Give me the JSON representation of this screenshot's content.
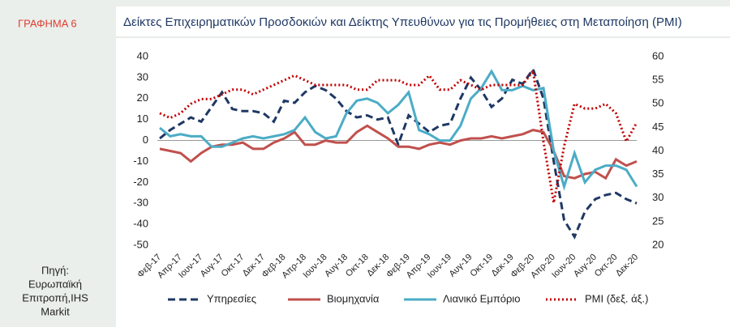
{
  "chart_data": {
    "type": "line",
    "label": "ΓΡΑΦΗΜΑ 6",
    "title": "Δείκτες Επιχειρηματικών Προσδοκιών και Δείκτης Υπευθύνων για τις Προμήθειες στη Μεταποίηση (PMI)",
    "source": [
      "Πηγή:",
      "Ευρωπαϊκή",
      "Επιτροπή,IHS",
      "Markit"
    ],
    "categories": [
      "Φεβ-17",
      null,
      "Απρ-17",
      null,
      "Ιουν-17",
      null,
      "Αυγ-17",
      null,
      "Οκτ-17",
      null,
      "Δεκ-17",
      null,
      "Φεβ-18",
      null,
      "Απρ-18",
      null,
      "Ιουν-18",
      null,
      "Αυγ-18",
      null,
      "Οκτ-18",
      null,
      "Δεκ-18",
      null,
      "Φεβ-19",
      null,
      "Απρ-19",
      null,
      "Ιουν-19",
      null,
      "Αυγ-19",
      null,
      "Οκτ-19",
      null,
      "Δεκ-19",
      null,
      "Φεβ-20",
      null,
      "Απρ-20",
      null,
      "Ιουν-20",
      null,
      "Αυγ-20",
      null,
      "Οκτ-20",
      null,
      "Δεκ-20"
    ],
    "series": [
      {
        "name": "Υπηρεσίες",
        "color": "#1f3864",
        "dash": "dashed",
        "values": [
          1,
          5,
          8,
          11,
          9,
          16,
          23,
          15,
          14,
          14,
          13,
          9,
          19,
          18,
          23,
          26,
          24,
          20,
          14,
          11,
          12,
          10,
          11,
          -2,
          12,
          8,
          4,
          7,
          8,
          20,
          30,
          24,
          16,
          20,
          29,
          27,
          34,
          20,
          -10,
          -38,
          -46,
          -34,
          -28,
          -26,
          -25,
          -28,
          -30
        ]
      },
      {
        "name": "Βιομηχανία",
        "color": "#c0504d",
        "dash": "solid",
        "values": [
          -4,
          -5,
          -6,
          -10,
          -6,
          -3,
          -2,
          -2,
          -1,
          -4,
          -4,
          -1,
          1,
          4,
          -2,
          -2,
          0,
          -1,
          -1,
          4,
          7,
          4,
          1,
          -3,
          -3,
          -4,
          -2,
          -1,
          -2,
          0,
          1,
          1,
          2,
          1,
          2,
          3,
          5,
          4,
          -5,
          -17,
          -18,
          -16,
          -15,
          -18,
          -9,
          -12,
          -10
        ]
      },
      {
        "name": "Λιανικό Εμπόριο",
        "color": "#4bacc6",
        "dash": "solid",
        "values": [
          6,
          2,
          3,
          2,
          2,
          -3,
          -3,
          -1,
          1,
          2,
          1,
          2,
          3,
          5,
          11,
          4,
          1,
          2,
          13,
          19,
          20,
          18,
          13,
          17,
          23,
          5,
          3,
          0,
          0,
          7,
          20,
          25,
          33,
          24,
          24,
          26,
          24,
          25,
          -5,
          -22,
          -6,
          -20,
          -14,
          -12,
          -12,
          -14,
          -22
        ]
      },
      {
        "name": "PMI (δεξ. άξ.)",
        "color": "#c00000",
        "dash": "dotted",
        "axis": "y2",
        "values": [
          48,
          47,
          48,
          50,
          51,
          51,
          52,
          53,
          53,
          52,
          53,
          54,
          55,
          56,
          55,
          54,
          54,
          54,
          54,
          53,
          53,
          55,
          55,
          55,
          54,
          54,
          56,
          53,
          53,
          55,
          54,
          53,
          54,
          54,
          54,
          54,
          57,
          42,
          29,
          41,
          50,
          49,
          49,
          50,
          48,
          42,
          46
        ]
      }
    ],
    "ylim": [
      -50,
      40
    ],
    "yticks": [
      -50,
      -40,
      -30,
      -20,
      -10,
      0,
      10,
      20,
      30,
      40
    ],
    "y2lim": [
      20,
      60
    ],
    "y2ticks": [
      20,
      25,
      30,
      35,
      40,
      45,
      50,
      55,
      60
    ],
    "zero_line": true,
    "legend": "bottom"
  }
}
